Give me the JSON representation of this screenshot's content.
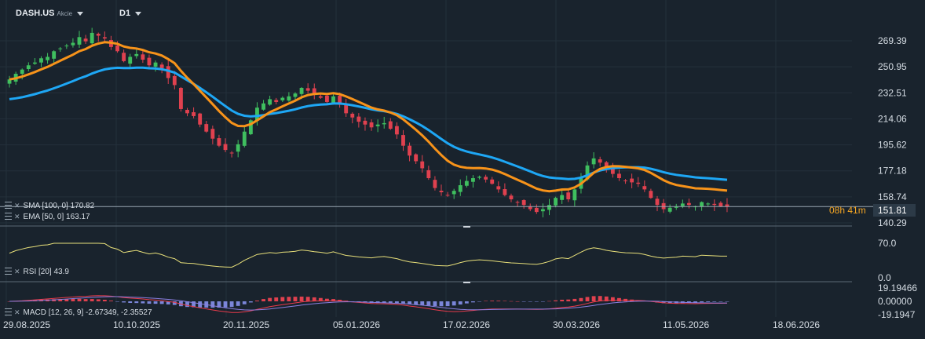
{
  "header": {
    "symbol": "DASH.US",
    "asset_type": "Akcie",
    "timeframe": "D1"
  },
  "price_info": {
    "timer": "08h 41m",
    "last_price": "151.81"
  },
  "indicators": {
    "sma": "SMA [100, 0] 170.82",
    "ema": "EMA [50, 0] 163.17",
    "rsi": "RSI [20] 43.9",
    "macd": "MACD [12, 26, 9] -2.67349, -2.35527"
  },
  "colors": {
    "background": "#19232d",
    "up": "#3fbf5f",
    "down": "#e0414f",
    "sma": "#1ea7f5",
    "ema": "#f7931a",
    "rsi": "#e8e07a",
    "macd_line": "#e83b4b",
    "signal_line": "#8a7fe0",
    "hist_pos": "#e0414f",
    "hist_neg": "#7b86d9"
  },
  "chart_data": [
    {
      "type": "candlestick",
      "xlabel": "",
      "ylabel": "",
      "x_ticks": [
        "29.08.2025",
        "10.10.2025",
        "20.11.2025",
        "05.01.2026",
        "17.02.2026",
        "30.03.2026",
        "11.05.2026",
        "18.06.2026"
      ],
      "y_ticks": [
        "269.39",
        "250.95",
        "232.51",
        "214.06",
        "195.62",
        "177.18",
        "158.74",
        "140.29"
      ],
      "ylim": [
        140.29,
        269.39
      ],
      "close_series": [
        242,
        246,
        249,
        252,
        254,
        257,
        258,
        262,
        264,
        266,
        268,
        272,
        269,
        275,
        273,
        271,
        265,
        262,
        255,
        258,
        260,
        256,
        252,
        254,
        250,
        243,
        238,
        221,
        218,
        216,
        210,
        205,
        200,
        195,
        192,
        190,
        196,
        205,
        213,
        222,
        225,
        228,
        226,
        229,
        230,
        232,
        236,
        234,
        231,
        229,
        226,
        230,
        224,
        218,
        215,
        212,
        210,
        208,
        210,
        211,
        207,
        203,
        195,
        188,
        184,
        179,
        172,
        165,
        162,
        160,
        163,
        167,
        170,
        172,
        173,
        171,
        168,
        164,
        160,
        157,
        155,
        153,
        150,
        148,
        150,
        153,
        158,
        160,
        157,
        164,
        172,
        181,
        186,
        183,
        178,
        175,
        172,
        170,
        169,
        168,
        164,
        158,
        153,
        150,
        151,
        152,
        154,
        153,
        152,
        155,
        154,
        153,
        152,
        151.81
      ],
      "series": [
        {
          "name": "SMA [100, 0]",
          "last": 170.82
        },
        {
          "name": "EMA [50, 0]",
          "last": 163.17
        }
      ]
    },
    {
      "type": "line",
      "name": "RSI [20]",
      "y_ticks": [
        "70.0",
        "0.0"
      ],
      "ylim": [
        0,
        70
      ],
      "last": 43.9
    },
    {
      "type": "bar",
      "name": "MACD [12, 26, 9]",
      "y_ticks": [
        "19.19466",
        "0.00000",
        "-19.1947"
      ],
      "ylim": [
        -19.1947,
        19.19466
      ],
      "macd_last": -2.67349,
      "signal_last": -2.35527
    }
  ]
}
